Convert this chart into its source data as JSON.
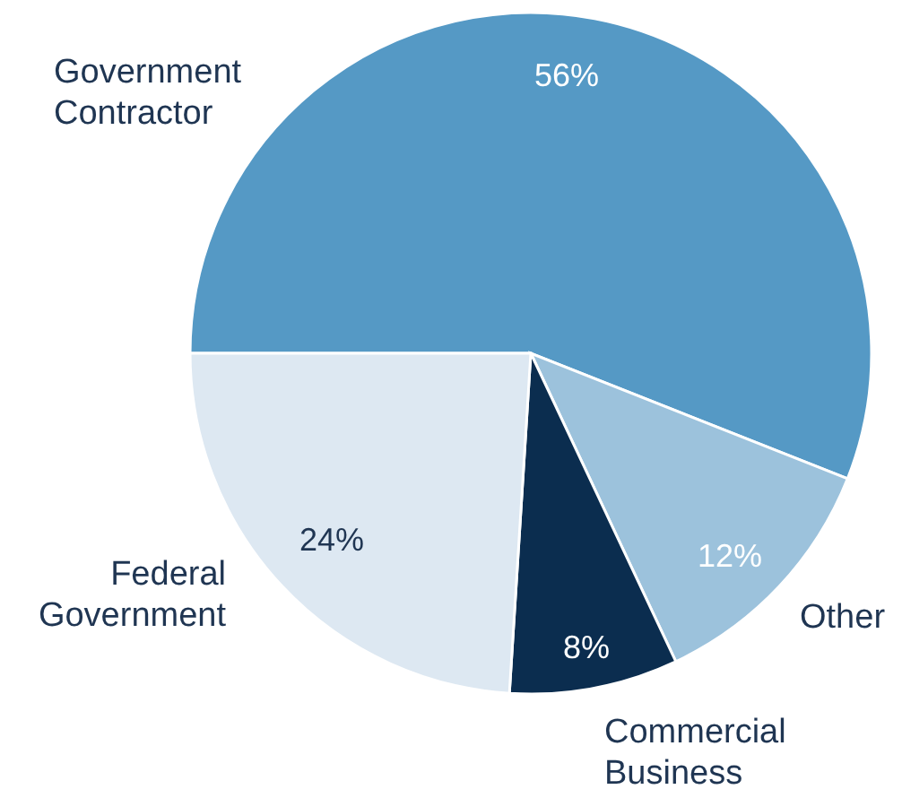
{
  "chart_data": {
    "type": "pie",
    "categories": [
      "Government Contractor",
      "Other",
      "Commercial Business",
      "Federal Government"
    ],
    "values": [
      56,
      12,
      8,
      24
    ],
    "colors": [
      "#5599c5",
      "#9cc2dc",
      "#0b2d4f",
      "#dde8f2"
    ],
    "value_labels": [
      "56%",
      "12%",
      "8%",
      "24%"
    ]
  }
}
